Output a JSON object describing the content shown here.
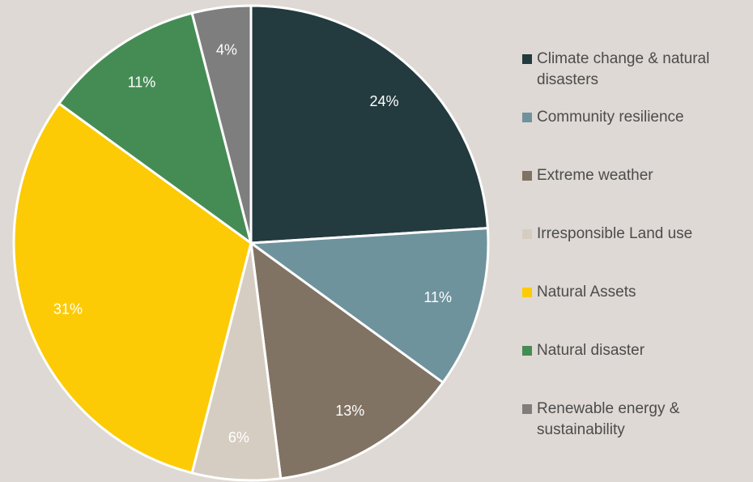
{
  "chart_data": {
    "type": "pie",
    "slices": [
      {
        "label": "Climate change & natural disasters",
        "value": 24,
        "value_label": "24%",
        "color": "#233a3e"
      },
      {
        "label": "Community resilience",
        "value": 11,
        "value_label": "11%",
        "color": "#6f939d"
      },
      {
        "label": "Extreme weather",
        "value": 13,
        "value_label": "13%",
        "color": "#817363"
      },
      {
        "label": "Irresponsible Land use",
        "value": 6,
        "value_label": "6%",
        "color": "#d6cdc2"
      },
      {
        "label": "Natural Assets",
        "value": 31,
        "value_label": "31%",
        "color": "#fccb05"
      },
      {
        "label": "Natural disaster",
        "value": 11,
        "value_label": "11%",
        "color": "#458c54"
      },
      {
        "label": "Renewable energy & sustainability",
        "value": 4,
        "value_label": "4%",
        "color": "#7e7e7e"
      }
    ],
    "start": "12 o'clock",
    "direction": "clockwise",
    "legend_position": "right",
    "title": ""
  }
}
